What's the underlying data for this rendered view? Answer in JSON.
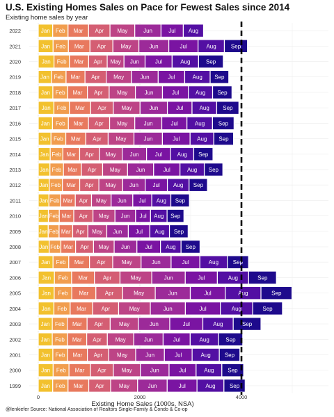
{
  "chart_data": {
    "type": "bar",
    "orientation": "horizontal",
    "stacked": true,
    "title": "U.S. Existing Homes Sales on Pace for Fewest Sales since 2014",
    "subtitle": "Existing home sales by year",
    "xlabel": "Existing Home Sales (1000s, NSA)",
    "ylabel": "",
    "caption": "@lenkiefer Source: National Association of Realtors Single-Family & Condo & Co-op",
    "xlim": [
      0,
      5500
    ],
    "xticks": [
      "0",
      "2000",
      "4000"
    ],
    "reference_line": {
      "x": 4000,
      "style": "dashed"
    },
    "grid": true,
    "years": [
      "2022",
      "2021",
      "2020",
      "2019",
      "2018",
      "2017",
      "2016",
      "2015",
      "2014",
      "2013",
      "2012",
      "2011",
      "2010",
      "2009",
      "2008",
      "2007",
      "2006",
      "2005",
      "2004",
      "2003",
      "2002",
      "2001",
      "2000",
      "1999"
    ],
    "months": [
      "Jan",
      "Feb",
      "Mar",
      "Apr",
      "May",
      "Jun",
      "Jul",
      "Aug",
      "Sep"
    ],
    "month_colors": [
      "#f2c12e",
      "#f19d4e",
      "#e8795e",
      "#d45e73",
      "#bd4486",
      "#9c2a99",
      "#7a14a2",
      "#530fa3",
      "#1e0a8c"
    ],
    "series": [
      {
        "name": "Jan",
        "values": [
          284,
          292,
          310,
          260,
          287,
          308,
          280,
          251,
          235,
          230,
          216,
          210,
          199,
          196,
          215,
          291,
          318,
          314,
          308,
          276,
          275,
          287,
          293,
          284
        ]
      },
      {
        "name": "Feb",
        "values": [
          302,
          301,
          303,
          287,
          294,
          305,
          313,
          291,
          250,
          266,
          259,
          227,
          215,
          214,
          230,
          309,
          339,
          345,
          320,
          294,
          299,
          291,
          312,
          302
        ]
      },
      {
        "name": "Mar",
        "values": [
          405,
          425,
          379,
          373,
          386,
          419,
          395,
          394,
          330,
          353,
          341,
          292,
          285,
          268,
          290,
          409,
          448,
          475,
          443,
          391,
          380,
          389,
          421,
          408
        ]
      },
      {
        "name": "Apr",
        "values": [
          421,
          451,
          365,
          417,
          429,
          444,
          417,
          440,
          388,
          418,
          377,
          319,
          378,
          298,
          353,
          457,
          504,
          527,
          511,
          455,
          406,
          419,
          451,
          431
        ]
      },
      {
        "name": "May",
        "values": [
          488,
          512,
          331,
          496,
          516,
          528,
          495,
          508,
          449,
          491,
          469,
          386,
          433,
          373,
          406,
          558,
          625,
          642,
          624,
          553,
          520,
          532,
          532,
          531
        ]
      },
      {
        "name": "Jun",
        "values": [
          517,
          589,
          415,
          528,
          533,
          538,
          532,
          560,
          480,
          513,
          443,
          427,
          406,
          424,
          448,
          591,
          660,
          690,
          690,
          620,
          578,
          565,
          566,
          582
        ]
      },
      {
        "name": "Jul",
        "values": [
          438,
          576,
          532,
          522,
          509,
          485,
          495,
          545,
          472,
          519,
          437,
          373,
          294,
          424,
          464,
          566,
          632,
          688,
          688,
          651,
          533,
          546,
          532,
          587
        ]
      },
      {
        "name": "Aug",
        "values": [
          398,
          518,
          521,
          501,
          478,
          486,
          503,
          467,
          457,
          478,
          427,
          376,
          326,
          386,
          405,
          540,
          616,
          703,
          637,
          598,
          557,
          535,
          507,
          530
        ]
      },
      {
        "name": "Sep",
        "values": [
          0,
          454,
          486,
          366,
          381,
          436,
          424,
          388,
          378,
          365,
          361,
          365,
          331,
          367,
          373,
          418,
          546,
          610,
          586,
          546,
          477,
          405,
          429,
          418
        ]
      }
    ]
  }
}
